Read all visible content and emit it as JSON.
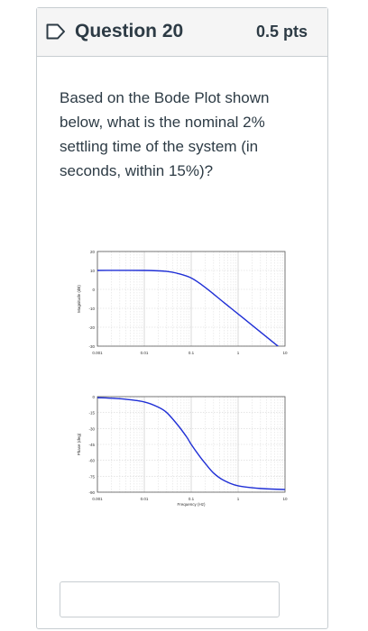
{
  "question": {
    "title": "Question 20",
    "points": "0.5 pts",
    "text": "Based on the Bode Plot shown below, what is the nominal 2% settling time of the system (in seconds, within 15%)?",
    "answer_value": ""
  },
  "colors": {
    "curve": "#1f2fd6",
    "header_bg": "#f5f5f5",
    "border": "#c7cdd1"
  },
  "chart_data": [
    {
      "type": "line",
      "xlabel": "",
      "ylabel": "Magnitude (dB)",
      "x_scale": "log",
      "xlim": [
        0.001,
        10
      ],
      "ylim": [
        -30,
        20
      ],
      "x_ticks": [
        "0.001",
        "0.01",
        "0.1",
        "1",
        "10"
      ],
      "y_ticks": [
        "20",
        "10",
        "0",
        "-10",
        "-20",
        "-30"
      ],
      "grid": true,
      "series": [
        {
          "x": [
            0.001,
            0.01,
            0.03,
            0.05,
            0.1,
            0.2,
            0.5,
            1,
            2,
            5,
            10
          ],
          "y": [
            10,
            10,
            9.5,
            8.5,
            6,
            1,
            -7,
            -13,
            -19,
            -27,
            -33
          ]
        }
      ]
    },
    {
      "type": "line",
      "xlabel": "Frequency (Hz)",
      "ylabel": "Phase (deg)",
      "x_scale": "log",
      "xlim": [
        0.001,
        10
      ],
      "ylim": [
        -90,
        0
      ],
      "x_ticks": [
        "0.001",
        "0.01",
        "0.1",
        "1",
        "10"
      ],
      "y_ticks": [
        "0",
        "-15",
        "-30",
        "-45",
        "-60",
        "-75",
        "-90"
      ],
      "grid": true,
      "series": [
        {
          "x": [
            0.001,
            0.003,
            0.01,
            0.02,
            0.03,
            0.05,
            0.08,
            0.1,
            0.15,
            0.2,
            0.3,
            0.5,
            1,
            3,
            10
          ],
          "y": [
            -1,
            -2,
            -5,
            -10,
            -15,
            -26,
            -38,
            -45,
            -56,
            -63,
            -72,
            -79,
            -84,
            -86.5,
            -87.5
          ]
        }
      ]
    }
  ]
}
